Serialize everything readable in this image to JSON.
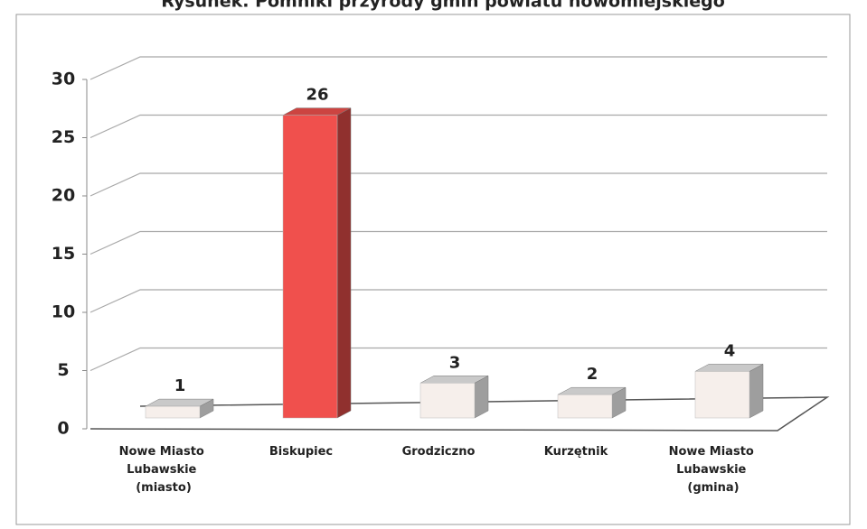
{
  "chart_data": {
    "type": "bar3d",
    "title": "Rysunek. Pomniki przyrody gmin powiatu nowomiejskiego",
    "categories": [
      "Nowe Miasto Lubawskie (miasto)",
      "Biskupiec",
      "Grodziczno",
      "Kurzętnik",
      "Nowe Miasto Lubawskie (gmina)"
    ],
    "values": [
      1,
      26,
      3,
      2,
      4
    ],
    "colors": [
      "#f6efeb",
      "#f0504d",
      "#f6efeb",
      "#f6efeb",
      "#f6efeb"
    ],
    "ylim": [
      0,
      30
    ],
    "yticks": [
      0,
      5,
      10,
      15,
      20,
      25,
      30
    ],
    "grid": true
  }
}
